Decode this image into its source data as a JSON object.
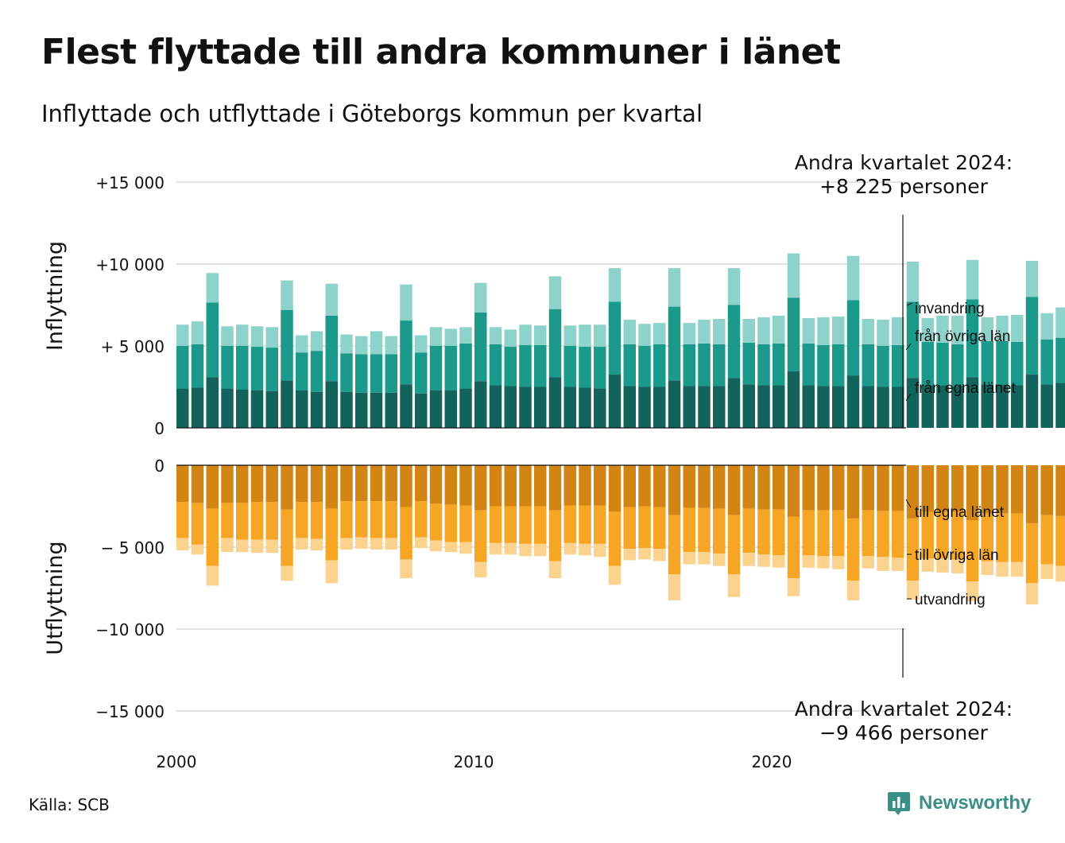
{
  "title": "Flest flyttade till andra kommuner i länet",
  "subtitle": "Inflyttade och utflyttade i Göteborgs kommun per kvartal",
  "source": "Källa: SCB",
  "brand": "Newsworthy",
  "colors": {
    "in_egna": "#12635b",
    "in_ovriga": "#1b998b",
    "in_invandring": "#8dd3cb",
    "ut_egna": "#d38513",
    "ut_ovriga": "#f7a524",
    "ut_utvandring": "#fbd38f",
    "grid": "#e3e3e3",
    "brand": "#3a8f87"
  },
  "chart_data": {
    "type": "bar",
    "stacked": true,
    "grid": true,
    "x": {
      "start": "2000 Q1",
      "end": "2024 Q2",
      "tick_labels": [
        "2000",
        "2010",
        "2020"
      ]
    },
    "y_ticks": {
      "inflow": [
        "+15 000",
        "+10 000",
        "+ 5 000",
        "0"
      ],
      "outflow": [
        "0",
        "− 5 000",
        "−10 000",
        "−15 000"
      ]
    },
    "panels": [
      {
        "name": "inflow",
        "ylabel": "Inflyttning",
        "ylim": [
          0,
          15000
        ],
        "series": [
          {
            "name": "från egna länet",
            "key": "in_egna",
            "values": [
              2400,
              2450,
              3100,
              2400,
              2350,
              2300,
              2250,
              2900,
              2300,
              2200,
              2850,
              2200,
              2150,
              2150,
              2150,
              2650,
              2100,
              2300,
              2300,
              2400,
              2850,
              2600,
              2550,
              2500,
              2500,
              3100,
              2500,
              2450,
              2400,
              3250,
              2550,
              2500,
              2500,
              2900,
              2550,
              2550,
              2550,
              3050,
              2650,
              2600,
              2600,
              3450,
              2600,
              2550,
              2550,
              3200,
              2550,
              2500,
              2500,
              3050,
              2600,
              2600,
              2550,
              3100,
              2650,
              2650,
              2600,
              3250,
              2650,
              2750,
              2700,
              3350,
              2750,
              2750,
              2750,
              3400,
              2850,
              2850,
              2900,
              3450,
              2900,
              2900,
              2850,
              3550,
              2950,
              3000,
              3000,
              3650,
              3100,
              3200,
              3250,
              3750,
              3400,
              3450,
              3450,
              3700,
              3500,
              3500,
              3500,
              3900,
              3800,
              3650,
              3450,
              4050,
              3650,
              3700,
              3750,
              3900,
              3450,
              3400,
              3350
            ]
          },
          {
            "name": "från övriga län",
            "key": "in_ovriga",
            "values": [
              2600,
              2650,
              4550,
              2600,
              2650,
              2650,
              2650,
              4300,
              2300,
              2500,
              4000,
              2350,
              2350,
              2350,
              2350,
              3900,
              2500,
              2700,
              2700,
              2750,
              4200,
              2500,
              2400,
              2550,
              2550,
              4150,
              2500,
              2500,
              2550,
              4450,
              2550,
              2500,
              2600,
              4500,
              2550,
              2600,
              2550,
              4450,
              2550,
              2500,
              2550,
              4500,
              2550,
              2500,
              2550,
              4600,
              2550,
              2500,
              2550,
              4650,
              2650,
              2600,
              2550,
              4750,
              2650,
              2650,
              2650,
              4750,
              2750,
              2750,
              2800,
              4600,
              3000,
              2950,
              2950,
              4750,
              3050,
              3050,
              3050,
              4750,
              3100,
              3100,
              3050,
              4900,
              3200,
              3200,
              3200,
              4900,
              3300,
              3350,
              3350,
              5050,
              3400,
              3450,
              3450,
              4950,
              3500,
              3600,
              3700,
              4650,
              3150,
              3300,
              3250,
              4600,
              3500,
              3650,
              3600,
              5100,
              3100,
              3150,
              3100
            ]
          },
          {
            "name": "invandring",
            "key": "in_invandring",
            "values": [
              1300,
              1400,
              1800,
              1200,
              1300,
              1250,
              1250,
              1800,
              1050,
              1200,
              1950,
              1150,
              1100,
              1400,
              1100,
              2200,
              1050,
              1150,
              1050,
              1000,
              1800,
              1050,
              1050,
              1250,
              1200,
              2000,
              1250,
              1350,
              1350,
              2050,
              1500,
              1350,
              1300,
              2350,
              1300,
              1450,
              1550,
              2250,
              1450,
              1650,
              1700,
              2700,
              1550,
              1700,
              1700,
              2700,
              1550,
              1600,
              1700,
              2450,
              1450,
              1650,
              1750,
              2400,
              1450,
              1550,
              1650,
              2200,
              1600,
              1850,
              2100,
              2900,
              2150,
              2150,
              2150,
              3000,
              1900,
              1800,
              1600,
              2600,
              1850,
              1950,
              2000,
              2700,
              2300,
              2350,
              2500,
              2950,
              2400,
              2350,
              2450,
              2900,
              2150,
              2300,
              2450,
              2800,
              1450,
              1300,
              1050,
              2550,
              1450,
              1800,
              1600,
              2950,
              2500,
              2750,
              2600,
              3350,
              1600,
              1900,
              1775
            ]
          }
        ]
      },
      {
        "name": "outflow",
        "ylabel": "Utflyttning",
        "ylim": [
          -15000,
          0
        ],
        "series": [
          {
            "name": "till egna länet",
            "key": "ut_egna",
            "values": [
              -2250,
              -2300,
              -2650,
              -2300,
              -2300,
              -2250,
              -2250,
              -2700,
              -2250,
              -2250,
              -2650,
              -2200,
              -2200,
              -2200,
              -2200,
              -2550,
              -2200,
              -2350,
              -2400,
              -2450,
              -2750,
              -2500,
              -2500,
              -2500,
              -2500,
              -2750,
              -2450,
              -2450,
              -2450,
              -2850,
              -2550,
              -2500,
              -2550,
              -3050,
              -2600,
              -2600,
              -2650,
              -3050,
              -2650,
              -2700,
              -2700,
              -3150,
              -2750,
              -2750,
              -2750,
              -3250,
              -2750,
              -2800,
              -2800,
              -3250,
              -2850,
              -2850,
              -2850,
              -3350,
              -2950,
              -2950,
              -2950,
              -3550,
              -3050,
              -3100,
              -3100,
              -3650,
              -3200,
              -3250,
              -3250,
              -3800,
              -3300,
              -3300,
              -3350,
              -3900,
              -3400,
              -3400,
              -3400,
              -4050,
              -3550,
              -3600,
              -3650,
              -4200,
              -3700,
              -3750,
              -3700,
              -4350,
              -3800,
              -3850,
              -3850,
              -4500,
              -3950,
              -4000,
              -4050,
              -4650,
              -4000,
              -4050,
              -4100,
              -4700,
              -4000,
              -3950,
              -3950,
              -4650,
              -3850,
              -3800,
              -3700
            ]
          },
          {
            "name": "till övriga län",
            "key": "ut_ovriga",
            "values": [
              -2200,
              -2550,
              -3500,
              -2150,
              -2250,
              -2300,
              -2300,
              -3450,
              -2200,
              -2250,
              -3150,
              -2250,
              -2200,
              -2250,
              -2250,
              -3200,
              -2200,
              -2250,
              -2300,
              -2250,
              -3150,
              -2250,
              -2250,
              -2300,
              -2300,
              -3100,
              -2300,
              -2350,
              -2350,
              -3300,
              -2550,
              -2550,
              -2550,
              -3600,
              -2700,
              -2700,
              -2750,
              -3600,
              -2700,
              -2750,
              -2800,
              -3750,
              -2750,
              -2800,
              -2800,
              -3800,
              -2800,
              -2800,
              -2850,
              -3800,
              -2850,
              -2850,
              -2900,
              -3750,
              -2900,
              -2950,
              -2950,
              -3650,
              -3000,
              -3050,
              -3000,
              -3700,
              -3050,
              -3100,
              -3100,
              -3750,
              -3150,
              -3200,
              -3200,
              -3750,
              -3200,
              -3250,
              -3250,
              -3650,
              -3250,
              -3300,
              -3300,
              -3700,
              -3350,
              -3400,
              -3450,
              -3850,
              -3500,
              -3550,
              -3600,
              -4000,
              -3650,
              -3700,
              -3800,
              -4850,
              -3700,
              -3650,
              -3650,
              -4100,
              -3050,
              -2850,
              -2800,
              -3950,
              -2300,
              -2400,
              -3200
            ]
          },
          {
            "name": "utvandring",
            "key": "ut_utvandring",
            "values": [
              -750,
              -600,
              -1200,
              -850,
              -750,
              -800,
              -800,
              -900,
              -700,
              -700,
              -1400,
              -700,
              -700,
              -700,
              -700,
              -1150,
              -650,
              -650,
              -600,
              -700,
              -950,
              -700,
              -700,
              -750,
              -750,
              -1050,
              -700,
              -700,
              -800,
              -1150,
              -700,
              -700,
              -750,
              -1600,
              -750,
              -750,
              -750,
              -1400,
              -800,
              -750,
              -750,
              -1100,
              -750,
              -750,
              -800,
              -1200,
              -750,
              -850,
              -800,
              -1150,
              -800,
              -850,
              -850,
              -1200,
              -850,
              -900,
              -900,
              -1300,
              -900,
              -950,
              -1000,
              -1550,
              -1000,
              -1050,
              -1050,
              -1400,
              -1050,
              -1050,
              -1050,
              -1450,
              -1050,
              -1100,
              -1100,
              -1300,
              -1100,
              -1050,
              -1050,
              -1300,
              -1050,
              -1000,
              -1000,
              -1150,
              -950,
              -900,
              -1000,
              -1300,
              -1000,
              -1050,
              -1100,
              -1400,
              -1150,
              -1150,
              -1150,
              -1500,
              -1250,
              -1300,
              -1350,
              -1800,
              -1450,
              -1600,
              -2566
            ]
          }
        ]
      }
    ],
    "annotations": {
      "top": [
        "Andra kvartalet 2024:",
        "+8 225 personer"
      ],
      "bottom": [
        "Andra kvartalet 2024:",
        "−9 466 personer"
      ]
    }
  }
}
